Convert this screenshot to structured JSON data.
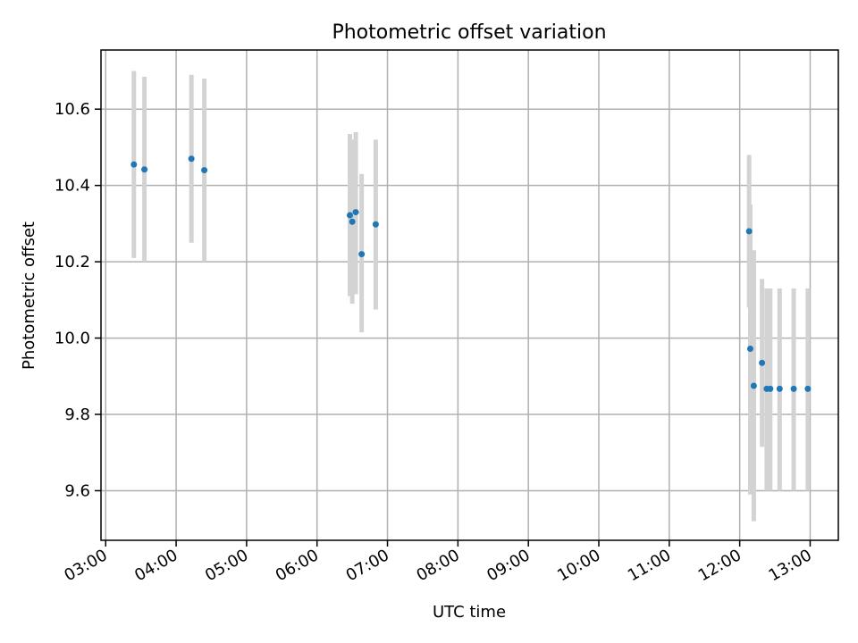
{
  "chart_data": {
    "type": "scatter",
    "title": "Photometric offset variation",
    "xlabel": "UTC time",
    "ylabel": "Photometric offset",
    "xlim": [
      "02:56",
      "13:24"
    ],
    "ylim": [
      9.47,
      10.755
    ],
    "grid": true,
    "x_ticks": [
      "03:00",
      "04:00",
      "05:00",
      "06:00",
      "07:00",
      "08:00",
      "09:00",
      "10:00",
      "11:00",
      "12:00",
      "13:00"
    ],
    "y_ticks": [
      9.6,
      9.8,
      10.0,
      10.2,
      10.4,
      10.6
    ],
    "y_tick_labels": [
      "9.6",
      "9.8",
      "10.0",
      "10.2",
      "10.4",
      "10.6"
    ],
    "series": [
      {
        "marker_color": "#1f77b4",
        "errorbar_color": "#d3d3d3",
        "points": [
          {
            "x": "03:24",
            "y": 10.455,
            "ylow": 10.21,
            "yhigh": 10.7
          },
          {
            "x": "03:33",
            "y": 10.442,
            "ylow": 10.2,
            "yhigh": 10.685
          },
          {
            "x": "04:13",
            "y": 10.47,
            "ylow": 10.25,
            "yhigh": 10.69
          },
          {
            "x": "04:24",
            "y": 10.44,
            "ylow": 10.2,
            "yhigh": 10.68
          },
          {
            "x": "06:28",
            "y": 10.322,
            "ylow": 10.11,
            "yhigh": 10.535
          },
          {
            "x": "06:30",
            "y": 10.305,
            "ylow": 10.09,
            "yhigh": 10.52
          },
          {
            "x": "06:33",
            "y": 10.33,
            "ylow": 10.115,
            "yhigh": 10.54
          },
          {
            "x": "06:38",
            "y": 10.22,
            "ylow": 10.015,
            "yhigh": 10.43
          },
          {
            "x": "06:50",
            "y": 10.298,
            "ylow": 10.075,
            "yhigh": 10.52
          },
          {
            "x": "12:08",
            "y": 10.28,
            "ylow": 10.08,
            "yhigh": 10.48
          },
          {
            "x": "12:09",
            "y": 9.972,
            "ylow": 9.59,
            "yhigh": 10.35
          },
          {
            "x": "12:12",
            "y": 9.875,
            "ylow": 9.52,
            "yhigh": 10.23
          },
          {
            "x": "12:19",
            "y": 9.935,
            "ylow": 9.715,
            "yhigh": 10.155
          },
          {
            "x": "12:23",
            "y": 9.867,
            "ylow": 9.6,
            "yhigh": 10.13
          },
          {
            "x": "12:26",
            "y": 9.867,
            "ylow": 9.6,
            "yhigh": 10.13
          },
          {
            "x": "12:34",
            "y": 9.867,
            "ylow": 9.6,
            "yhigh": 10.13
          },
          {
            "x": "12:46",
            "y": 9.867,
            "ylow": 9.6,
            "yhigh": 10.13
          },
          {
            "x": "12:58",
            "y": 9.867,
            "ylow": 9.6,
            "yhigh": 10.13
          }
        ]
      }
    ]
  }
}
